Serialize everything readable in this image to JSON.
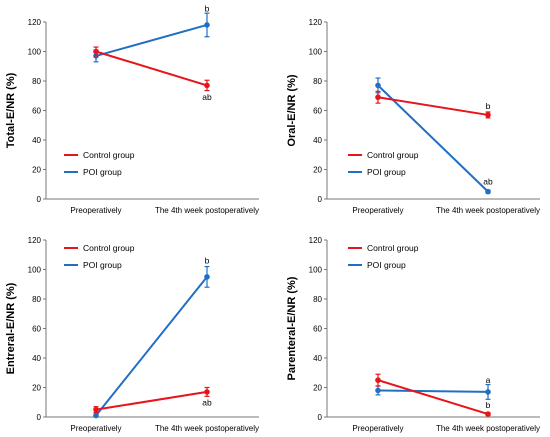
{
  "chart_data": [
    {
      "type": "line",
      "ylabel": "Total-E/NR (%)",
      "categories": [
        "Preoperatively",
        "The 4th week postoperatively"
      ],
      "ylim": [
        0,
        120
      ],
      "yticks": [
        "0",
        "20",
        "40",
        "60",
        "80",
        "100",
        "120"
      ],
      "legend_position": "left-middle",
      "series": [
        {
          "name": "Control group",
          "color": "#e8141c",
          "values": [
            100,
            77
          ],
          "errors": [
            3,
            3.5
          ]
        },
        {
          "name": "POI group",
          "color": "#1f6fc4",
          "values": [
            97,
            118
          ],
          "errors": [
            4,
            8
          ]
        }
      ],
      "annotations": [
        {
          "category": 1,
          "text": "b",
          "y": 129
        },
        {
          "category": 1,
          "text": "ab",
          "y": 69
        }
      ]
    },
    {
      "type": "line",
      "ylabel": "Oral-E/NR (%)",
      "categories": [
        "Preoperatively",
        "The 4th week postoperatively"
      ],
      "ylim": [
        0,
        120
      ],
      "yticks": [
        "0",
        "20",
        "40",
        "60",
        "80",
        "100",
        "120"
      ],
      "legend_position": "right-middle",
      "series": [
        {
          "name": "Control group",
          "color": "#e8141c",
          "values": [
            69,
            57
          ],
          "errors": [
            4,
            2
          ]
        },
        {
          "name": "POI group",
          "color": "#1f6fc4",
          "values": [
            77,
            5
          ],
          "errors": [
            5,
            1
          ]
        }
      ],
      "annotations": [
        {
          "category": 1,
          "text": "b",
          "y": 63
        },
        {
          "category": 1,
          "text": "ab",
          "y": 12
        }
      ]
    },
    {
      "type": "line",
      "ylabel": "Entreral-E/NR (%)",
      "categories": [
        "Preoperatively",
        "The 4th week postoperatively"
      ],
      "ylim": [
        0,
        120
      ],
      "yticks": [
        "0",
        "20",
        "40",
        "60",
        "80",
        "100",
        "120"
      ],
      "legend_position": "top-left",
      "series": [
        {
          "name": "Control group",
          "color": "#e8141c",
          "values": [
            5,
            17
          ],
          "errors": [
            2,
            3
          ]
        },
        {
          "name": "POI group",
          "color": "#1f6fc4",
          "values": [
            1,
            95
          ],
          "errors": [
            1,
            7
          ]
        }
      ],
      "annotations": [
        {
          "category": 1,
          "text": "b",
          "y": 106
        },
        {
          "category": 1,
          "text": "ab",
          "y": 10
        }
      ]
    },
    {
      "type": "line",
      "ylabel": "Parenteral-E/NR (%)",
      "categories": [
        "Preoperatively",
        "The 4th week postoperatively"
      ],
      "ylim": [
        0,
        120
      ],
      "yticks": [
        "0",
        "20",
        "40",
        "60",
        "80",
        "100",
        "120"
      ],
      "legend_position": "top-left",
      "series": [
        {
          "name": "Control group",
          "color": "#e8141c",
          "values": [
            25,
            2
          ],
          "errors": [
            4,
            1
          ]
        },
        {
          "name": "POI group",
          "color": "#1f6fc4",
          "values": [
            18,
            17
          ],
          "errors": [
            3,
            5
          ]
        }
      ],
      "annotations": [
        {
          "category": 1,
          "text": "a",
          "y": 25
        },
        {
          "category": 1,
          "text": "b",
          "y": 8
        }
      ]
    }
  ]
}
